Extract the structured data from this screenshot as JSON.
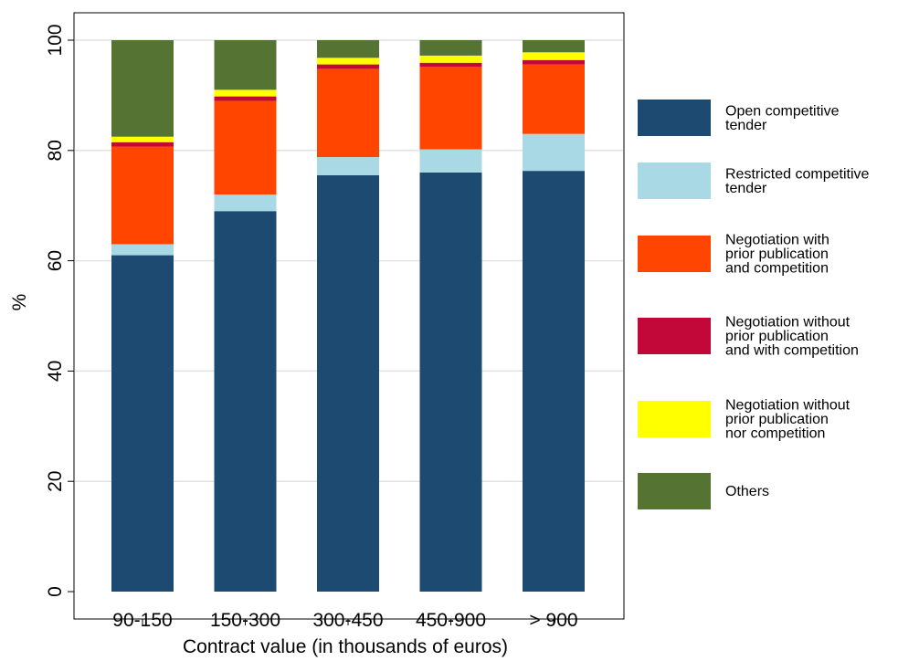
{
  "chart_data": {
    "type": "bar",
    "stacked": true,
    "categories": [
      "90-150",
      "150-300",
      "300-450",
      "450-900",
      "> 900"
    ],
    "series": [
      {
        "name": "Open competitive tender",
        "legend_lines": [
          "Open competitive",
          "tender"
        ],
        "color": "#1c4a70",
        "values": [
          61,
          69,
          75.5,
          76,
          76.3
        ]
      },
      {
        "name": "Restricted competitive tender",
        "legend_lines": [
          "Restricted competitive",
          "tender"
        ],
        "color": "#a9d9e4",
        "values": [
          2,
          3,
          3.3,
          4.2,
          6.7
        ]
      },
      {
        "name": "Negotiation with prior publication and competition",
        "legend_lines": [
          "Negotiation with",
          "prior publication",
          "and competition"
        ],
        "color": "#ff4500",
        "values": [
          17.7,
          17,
          16,
          15,
          12.6
        ]
      },
      {
        "name": "Negotiation without prior publication and with competition",
        "legend_lines": [
          "Negotiation without",
          "prior publication",
          "and with competition"
        ],
        "color": "#c20838",
        "values": [
          0.8,
          0.8,
          0.8,
          0.7,
          0.8
        ]
      },
      {
        "name": "Negotiation without prior publication nor competition",
        "legend_lines": [
          "Negotiation without",
          "prior publication",
          "nor competition"
        ],
        "color": "#ffff00",
        "values": [
          1,
          1.2,
          1.2,
          1.3,
          1.4
        ]
      },
      {
        "name": "Others",
        "legend_lines": [
          "Others"
        ],
        "color": "#557332",
        "values": [
          17.5,
          9,
          3.2,
          2.8,
          2.2
        ]
      }
    ],
    "xlabel": "Contract value (in thousands of euros)",
    "ylabel": "%",
    "ylim": [
      0,
      100
    ],
    "yticks": [
      0,
      20,
      40,
      60,
      80,
      100
    ],
    "grid": true,
    "legend_position": "right"
  }
}
